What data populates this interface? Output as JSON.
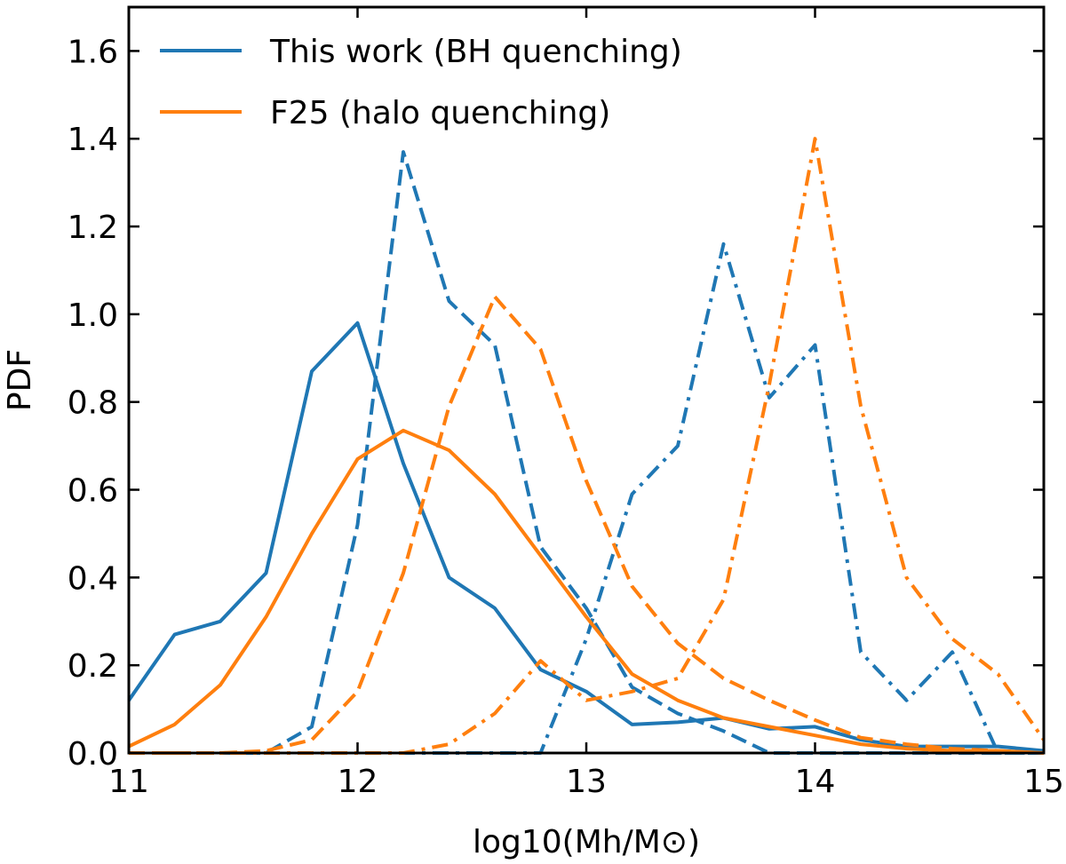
{
  "chart_data": {
    "type": "line",
    "xlabel": "log10(Mh/M⊙)",
    "ylabel": "PDF",
    "xlim": [
      11,
      15
    ],
    "ylim": [
      0,
      1.7
    ],
    "xticks": [
      "11",
      "12",
      "13",
      "14",
      "15"
    ],
    "yticks": [
      "0.0",
      "0.2",
      "0.4",
      "0.6",
      "0.8",
      "1.0",
      "1.2",
      "1.4",
      "1.6"
    ],
    "legend_position": "top-left",
    "colors": {
      "blue": "#1f77b4",
      "orange": "#ff7f0e"
    },
    "legend": [
      {
        "label": "This work (BH quenching)",
        "color": "#1f77b4"
      },
      {
        "label": "F25 (halo quenching)",
        "color": "#ff7f0e"
      }
    ],
    "series": [
      {
        "color": "#1f77b4",
        "style": "solid",
        "x": [
          11.0,
          11.2,
          11.4,
          11.6,
          11.8,
          12.0,
          12.2,
          12.4,
          12.6,
          12.8,
          13.0,
          13.2,
          13.4,
          13.6,
          13.8,
          14.0,
          14.2,
          14.4,
          14.6,
          14.8,
          15.0
        ],
        "y": [
          0.12,
          0.27,
          0.3,
          0.41,
          0.87,
          0.98,
          0.66,
          0.4,
          0.33,
          0.19,
          0.14,
          0.065,
          0.07,
          0.08,
          0.055,
          0.06,
          0.03,
          0.015,
          0.015,
          0.015,
          0.005
        ]
      },
      {
        "color": "#1f77b4",
        "style": "dashed",
        "x": [
          11.0,
          11.2,
          11.4,
          11.6,
          11.8,
          12.0,
          12.2,
          12.4,
          12.6,
          12.8,
          13.0,
          13.2,
          13.4,
          13.6,
          13.8,
          14.0,
          14.2,
          14.4,
          14.6,
          14.8,
          15.0
        ],
        "y": [
          0,
          0,
          0,
          0,
          0.06,
          0.52,
          1.37,
          1.03,
          0.93,
          0.47,
          0.33,
          0.15,
          0.09,
          0.05,
          0,
          0,
          0,
          0,
          0,
          0,
          0
        ]
      },
      {
        "color": "#1f77b4",
        "style": "dashdot",
        "x": [
          11.0,
          11.2,
          11.4,
          11.6,
          11.8,
          12.0,
          12.2,
          12.4,
          12.6,
          12.8,
          13.0,
          13.2,
          13.4,
          13.6,
          13.8,
          14.0,
          14.2,
          14.4,
          14.6,
          14.8,
          15.0
        ],
        "y": [
          0,
          0,
          0,
          0,
          0,
          0,
          0,
          0,
          0,
          0,
          0.26,
          0.59,
          0.7,
          1.16,
          0.81,
          0.93,
          0.23,
          0.12,
          0.23,
          0,
          0
        ]
      },
      {
        "color": "#ff7f0e",
        "style": "solid",
        "x": [
          11.0,
          11.2,
          11.4,
          11.6,
          11.8,
          12.0,
          12.2,
          12.4,
          12.6,
          12.8,
          13.0,
          13.2,
          13.4,
          13.6,
          13.8,
          14.0,
          14.2,
          14.4,
          14.6,
          14.8,
          15.0
        ],
        "y": [
          0.015,
          0.065,
          0.155,
          0.31,
          0.5,
          0.67,
          0.735,
          0.69,
          0.59,
          0.45,
          0.31,
          0.18,
          0.12,
          0.08,
          0.06,
          0.04,
          0.02,
          0.01,
          0.005,
          0.005,
          0
        ]
      },
      {
        "color": "#ff7f0e",
        "style": "dashed",
        "x": [
          11.0,
          11.2,
          11.4,
          11.6,
          11.8,
          12.0,
          12.2,
          12.4,
          12.6,
          12.8,
          13.0,
          13.2,
          13.4,
          13.6,
          13.8,
          14.0,
          14.2,
          14.4,
          14.6,
          14.8,
          15.0
        ],
        "y": [
          0,
          0,
          0,
          0.005,
          0.03,
          0.14,
          0.41,
          0.79,
          1.04,
          0.92,
          0.62,
          0.38,
          0.25,
          0.17,
          0.12,
          0.075,
          0.035,
          0.02,
          0.01,
          0.005,
          0
        ]
      },
      {
        "color": "#ff7f0e",
        "style": "dashdot",
        "x": [
          11.0,
          11.2,
          11.4,
          11.6,
          11.8,
          12.0,
          12.2,
          12.4,
          12.6,
          12.8,
          13.0,
          13.2,
          13.4,
          13.6,
          13.8,
          14.0,
          14.2,
          14.4,
          14.6,
          14.8,
          15.0
        ],
        "y": [
          0,
          0,
          0,
          0,
          0,
          0,
          0,
          0.02,
          0.09,
          0.21,
          0.12,
          0.14,
          0.17,
          0.35,
          0.84,
          1.4,
          0.79,
          0.4,
          0.26,
          0.18,
          0.03
        ]
      }
    ]
  }
}
